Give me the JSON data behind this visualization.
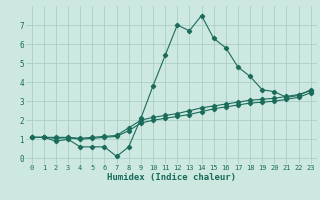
{
  "xlabel": "Humidex (Indice chaleur)",
  "xlim": [
    -0.5,
    23.5
  ],
  "ylim": [
    -0.3,
    8.0
  ],
  "yticks": [
    0,
    1,
    2,
    3,
    4,
    5,
    6,
    7
  ],
  "xticks": [
    0,
    1,
    2,
    3,
    4,
    5,
    6,
    7,
    8,
    9,
    10,
    11,
    12,
    13,
    14,
    15,
    16,
    17,
    18,
    19,
    20,
    21,
    22,
    23
  ],
  "bg_color": "#cce8e0",
  "grid_color": "#aacfc8",
  "line_color": "#1a6b5a",
  "line1_x": [
    0,
    1,
    2,
    3,
    4,
    5,
    6,
    7,
    8,
    9,
    10,
    11,
    12,
    13,
    14,
    15,
    16,
    17,
    18,
    19,
    20,
    21,
    22,
    23
  ],
  "line1_y": [
    1.1,
    1.1,
    0.9,
    1.0,
    0.6,
    0.6,
    0.6,
    0.1,
    0.6,
    2.1,
    3.8,
    5.4,
    7.0,
    6.7,
    7.5,
    6.3,
    5.8,
    4.8,
    4.3,
    3.6,
    3.5,
    3.2,
    3.3,
    3.6
  ],
  "line2_x": [
    0,
    1,
    2,
    3,
    4,
    5,
    6,
    7,
    8,
    9,
    10,
    11,
    12,
    13,
    14,
    15,
    16,
    17,
    18,
    19,
    20,
    21,
    22,
    23
  ],
  "line2_y": [
    1.1,
    1.1,
    1.1,
    1.1,
    1.05,
    1.1,
    1.15,
    1.2,
    1.6,
    2.0,
    2.15,
    2.25,
    2.35,
    2.5,
    2.65,
    2.75,
    2.85,
    2.95,
    3.05,
    3.1,
    3.15,
    3.25,
    3.35,
    3.55
  ],
  "line3_x": [
    0,
    1,
    2,
    3,
    4,
    5,
    6,
    7,
    8,
    9,
    10,
    11,
    12,
    13,
    14,
    15,
    16,
    17,
    18,
    19,
    20,
    21,
    22,
    23
  ],
  "line3_y": [
    1.1,
    1.1,
    1.05,
    1.08,
    1.0,
    1.05,
    1.1,
    1.15,
    1.45,
    1.85,
    2.0,
    2.1,
    2.2,
    2.3,
    2.45,
    2.6,
    2.7,
    2.8,
    2.9,
    2.95,
    3.0,
    3.1,
    3.2,
    3.45
  ],
  "tick_fontsize": 5.0,
  "xlabel_fontsize": 6.5,
  "marker": "D",
  "markersize": 2.2,
  "linewidth": 0.8
}
